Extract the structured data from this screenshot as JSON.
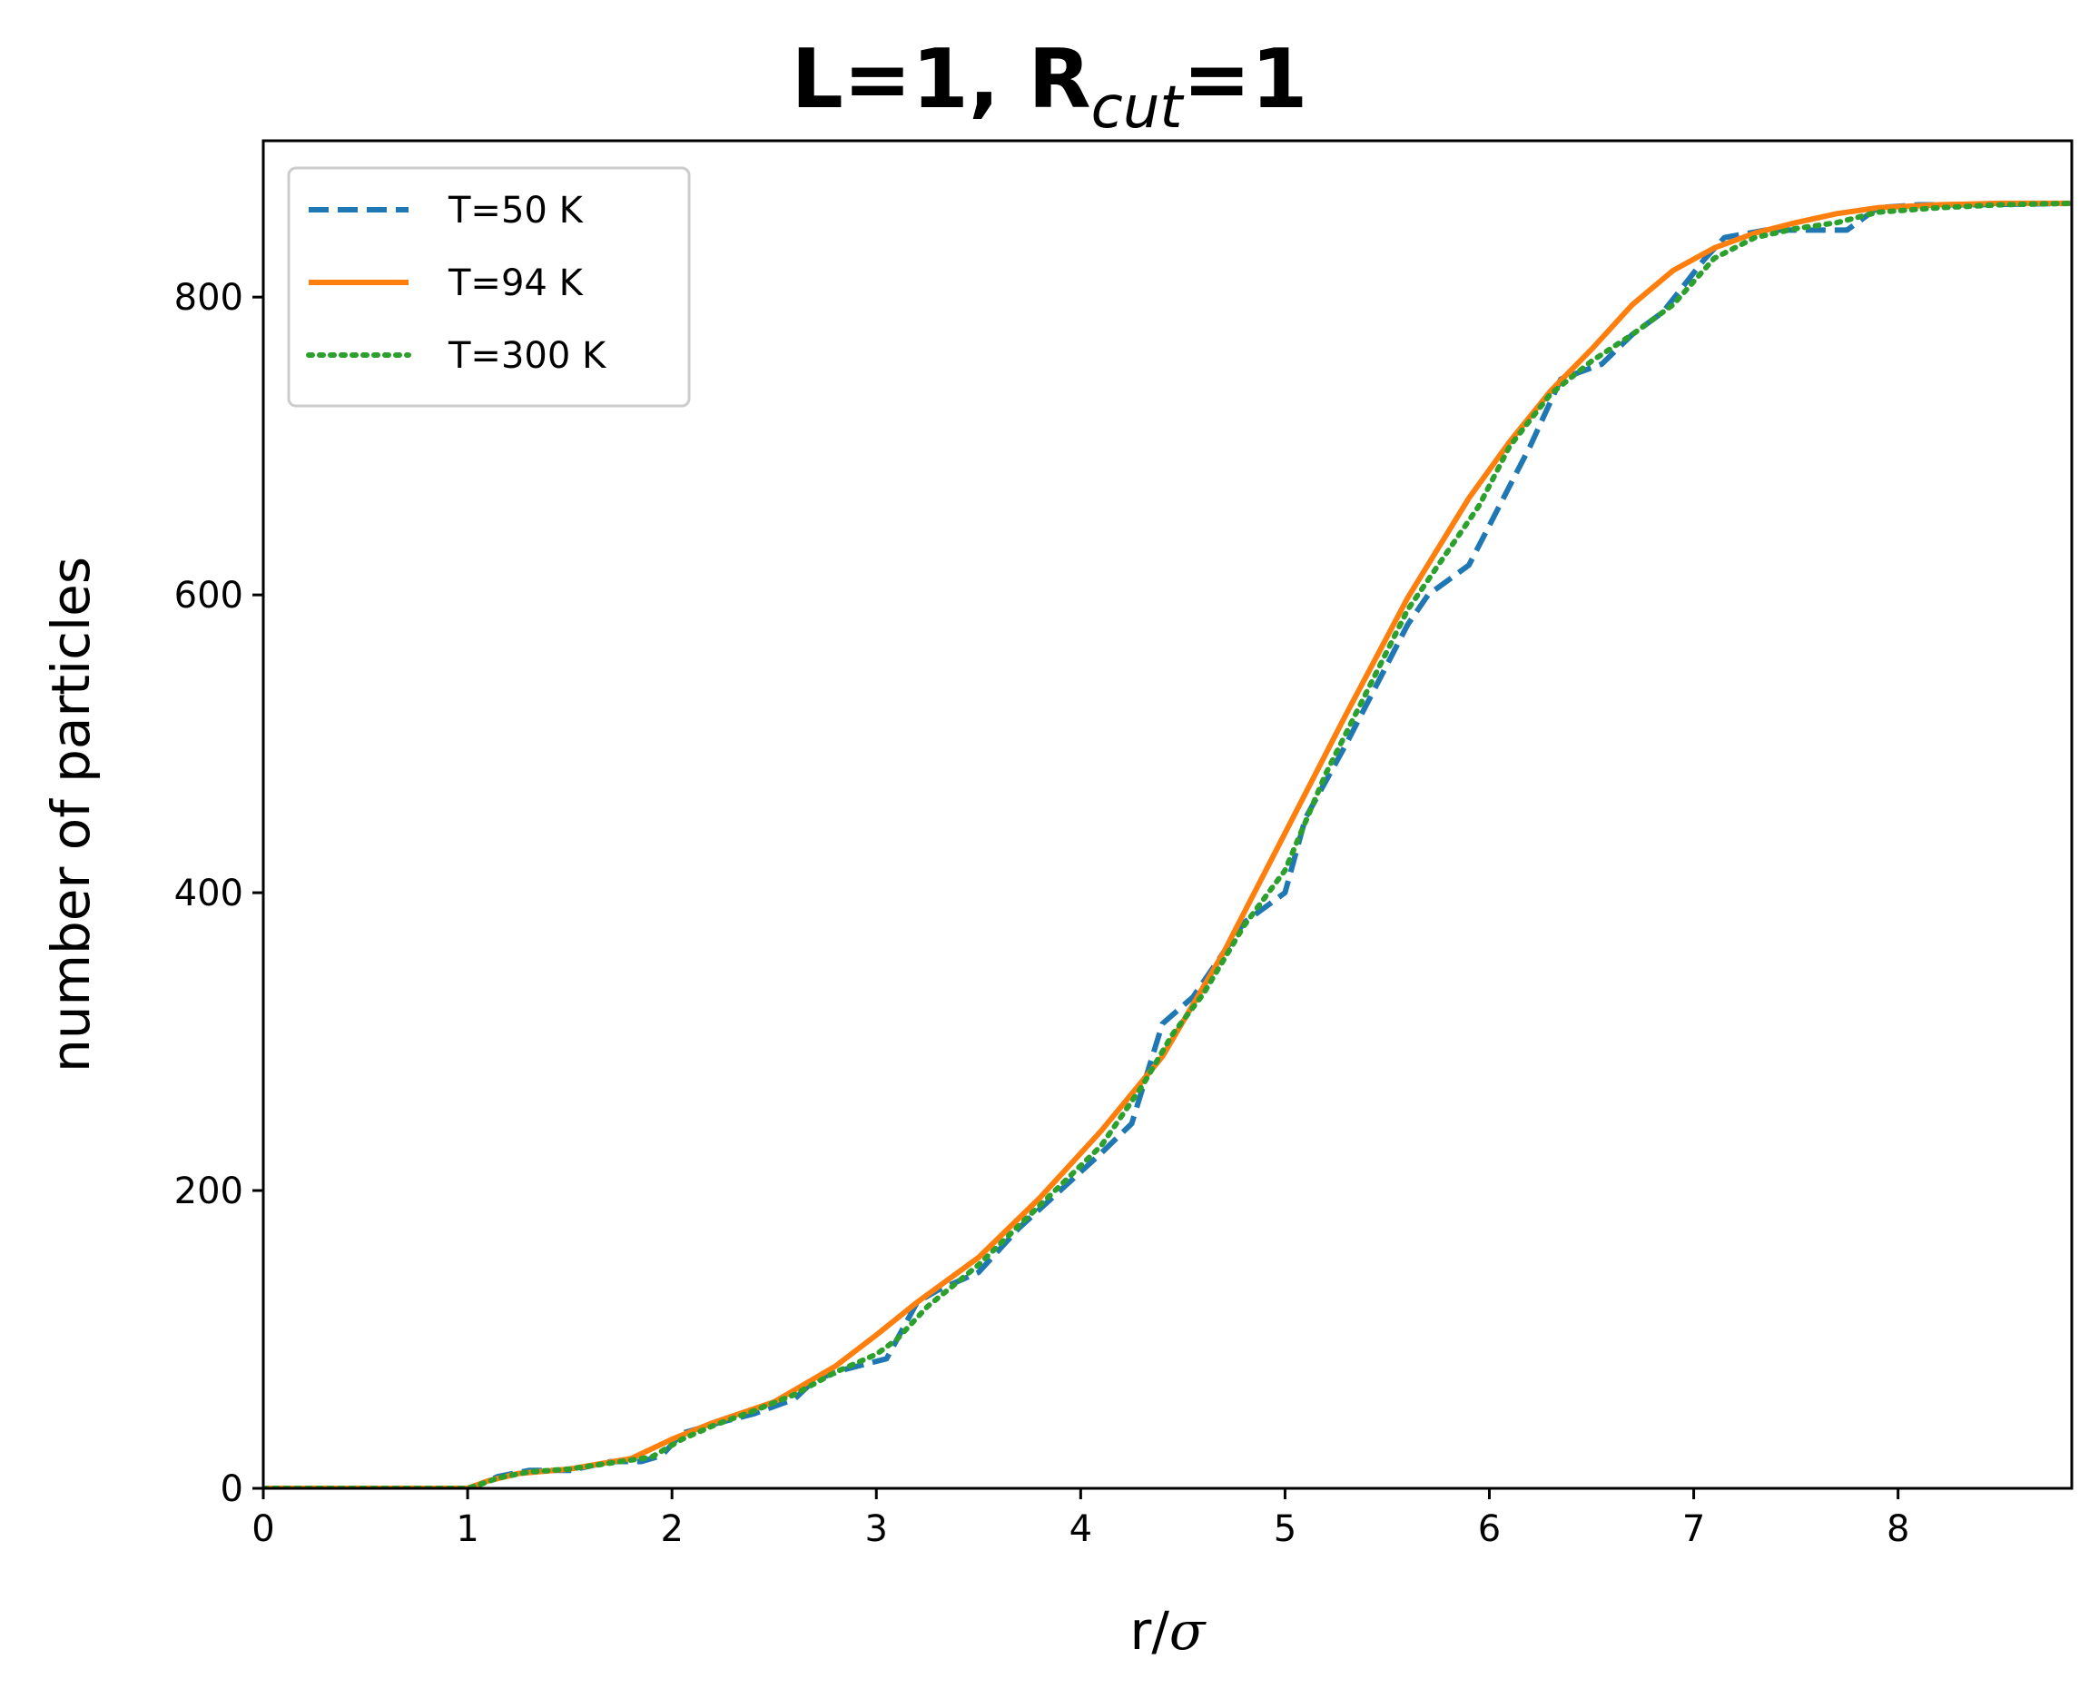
{
  "chart_data": {
    "type": "line",
    "title": {
      "main_prefix": "L=1, R",
      "subscript": "cut",
      "main_suffix": "=1"
    },
    "xlabel": {
      "prefix": "r/",
      "symbol": "σ"
    },
    "ylabel": "number of particles",
    "xlim": [
      0,
      8.85
    ],
    "ylim": [
      0,
      905
    ],
    "xticks": [
      0,
      1,
      2,
      3,
      4,
      5,
      6,
      7,
      8
    ],
    "yticks": [
      0,
      200,
      400,
      600,
      800
    ],
    "grid": false,
    "legend_position": "top-left",
    "series": [
      {
        "name": "T=50 K",
        "color": "#1f77b4",
        "style": "dashed",
        "x": [
          0,
          0.5,
          1.0,
          1.05,
          1.15,
          1.3,
          1.5,
          1.7,
          1.85,
          1.95,
          2.05,
          2.2,
          2.4,
          2.6,
          2.7,
          2.85,
          3.05,
          3.2,
          3.3,
          3.5,
          3.7,
          3.9,
          4.1,
          4.25,
          4.4,
          4.55,
          4.8,
          5.0,
          5.1,
          5.3,
          5.45,
          5.6,
          5.7,
          5.9,
          6.05,
          6.2,
          6.35,
          6.45,
          6.55,
          6.7,
          6.85,
          7.05,
          7.15,
          7.35,
          7.55,
          7.75,
          7.9,
          8.1,
          8.4,
          8.85
        ],
        "values": [
          0,
          0,
          0,
          2,
          8,
          12,
          12,
          18,
          18,
          22,
          37,
          43,
          50,
          60,
          73,
          80,
          87,
          125,
          133,
          145,
          175,
          200,
          225,
          245,
          312,
          330,
          380,
          400,
          450,
          500,
          540,
          580,
          600,
          620,
          660,
          700,
          745,
          750,
          755,
          775,
          790,
          825,
          840,
          845,
          845,
          845,
          860,
          862,
          862,
          863
        ]
      },
      {
        "name": "T=94 K",
        "color": "#ff7f0e",
        "style": "solid",
        "x": [
          0,
          1.0,
          1.1,
          1.25,
          1.5,
          1.8,
          2.0,
          2.2,
          2.5,
          2.8,
          3.0,
          3.2,
          3.5,
          3.8,
          4.1,
          4.4,
          4.7,
          5.0,
          5.3,
          5.6,
          5.9,
          6.1,
          6.3,
          6.5,
          6.7,
          6.9,
          7.1,
          7.3,
          7.5,
          7.7,
          7.9,
          8.2,
          8.5,
          8.85
        ],
        "values": [
          0,
          0,
          5,
          10,
          13,
          20,
          33,
          44,
          58,
          82,
          103,
          125,
          155,
          195,
          240,
          290,
          360,
          440,
          520,
          598,
          665,
          703,
          737,
          765,
          795,
          818,
          833,
          843,
          850,
          856,
          860,
          862,
          863,
          863
        ]
      },
      {
        "name": "T=300 K",
        "color": "#2ca02c",
        "style": "dotted",
        "x": [
          0,
          0.5,
          1.0,
          1.05,
          1.15,
          1.3,
          1.5,
          1.7,
          1.9,
          2.05,
          2.2,
          2.4,
          2.6,
          2.8,
          3.0,
          3.1,
          3.25,
          3.5,
          3.8,
          4.1,
          4.3,
          4.45,
          4.6,
          4.8,
          5.0,
          5.2,
          5.4,
          5.6,
          5.8,
          5.95,
          6.1,
          6.3,
          6.5,
          6.7,
          6.9,
          7.1,
          7.3,
          7.5,
          7.7,
          7.9,
          8.2,
          8.5,
          8.85
        ],
        "values": [
          0,
          0,
          0,
          2,
          7,
          11,
          13,
          17,
          21,
          33,
          42,
          52,
          63,
          78,
          90,
          100,
          122,
          150,
          190,
          230,
          270,
          305,
          332,
          378,
          415,
          480,
          535,
          590,
          630,
          660,
          700,
          735,
          757,
          775,
          795,
          826,
          840,
          846,
          850,
          857,
          860,
          862,
          863
        ]
      }
    ]
  }
}
